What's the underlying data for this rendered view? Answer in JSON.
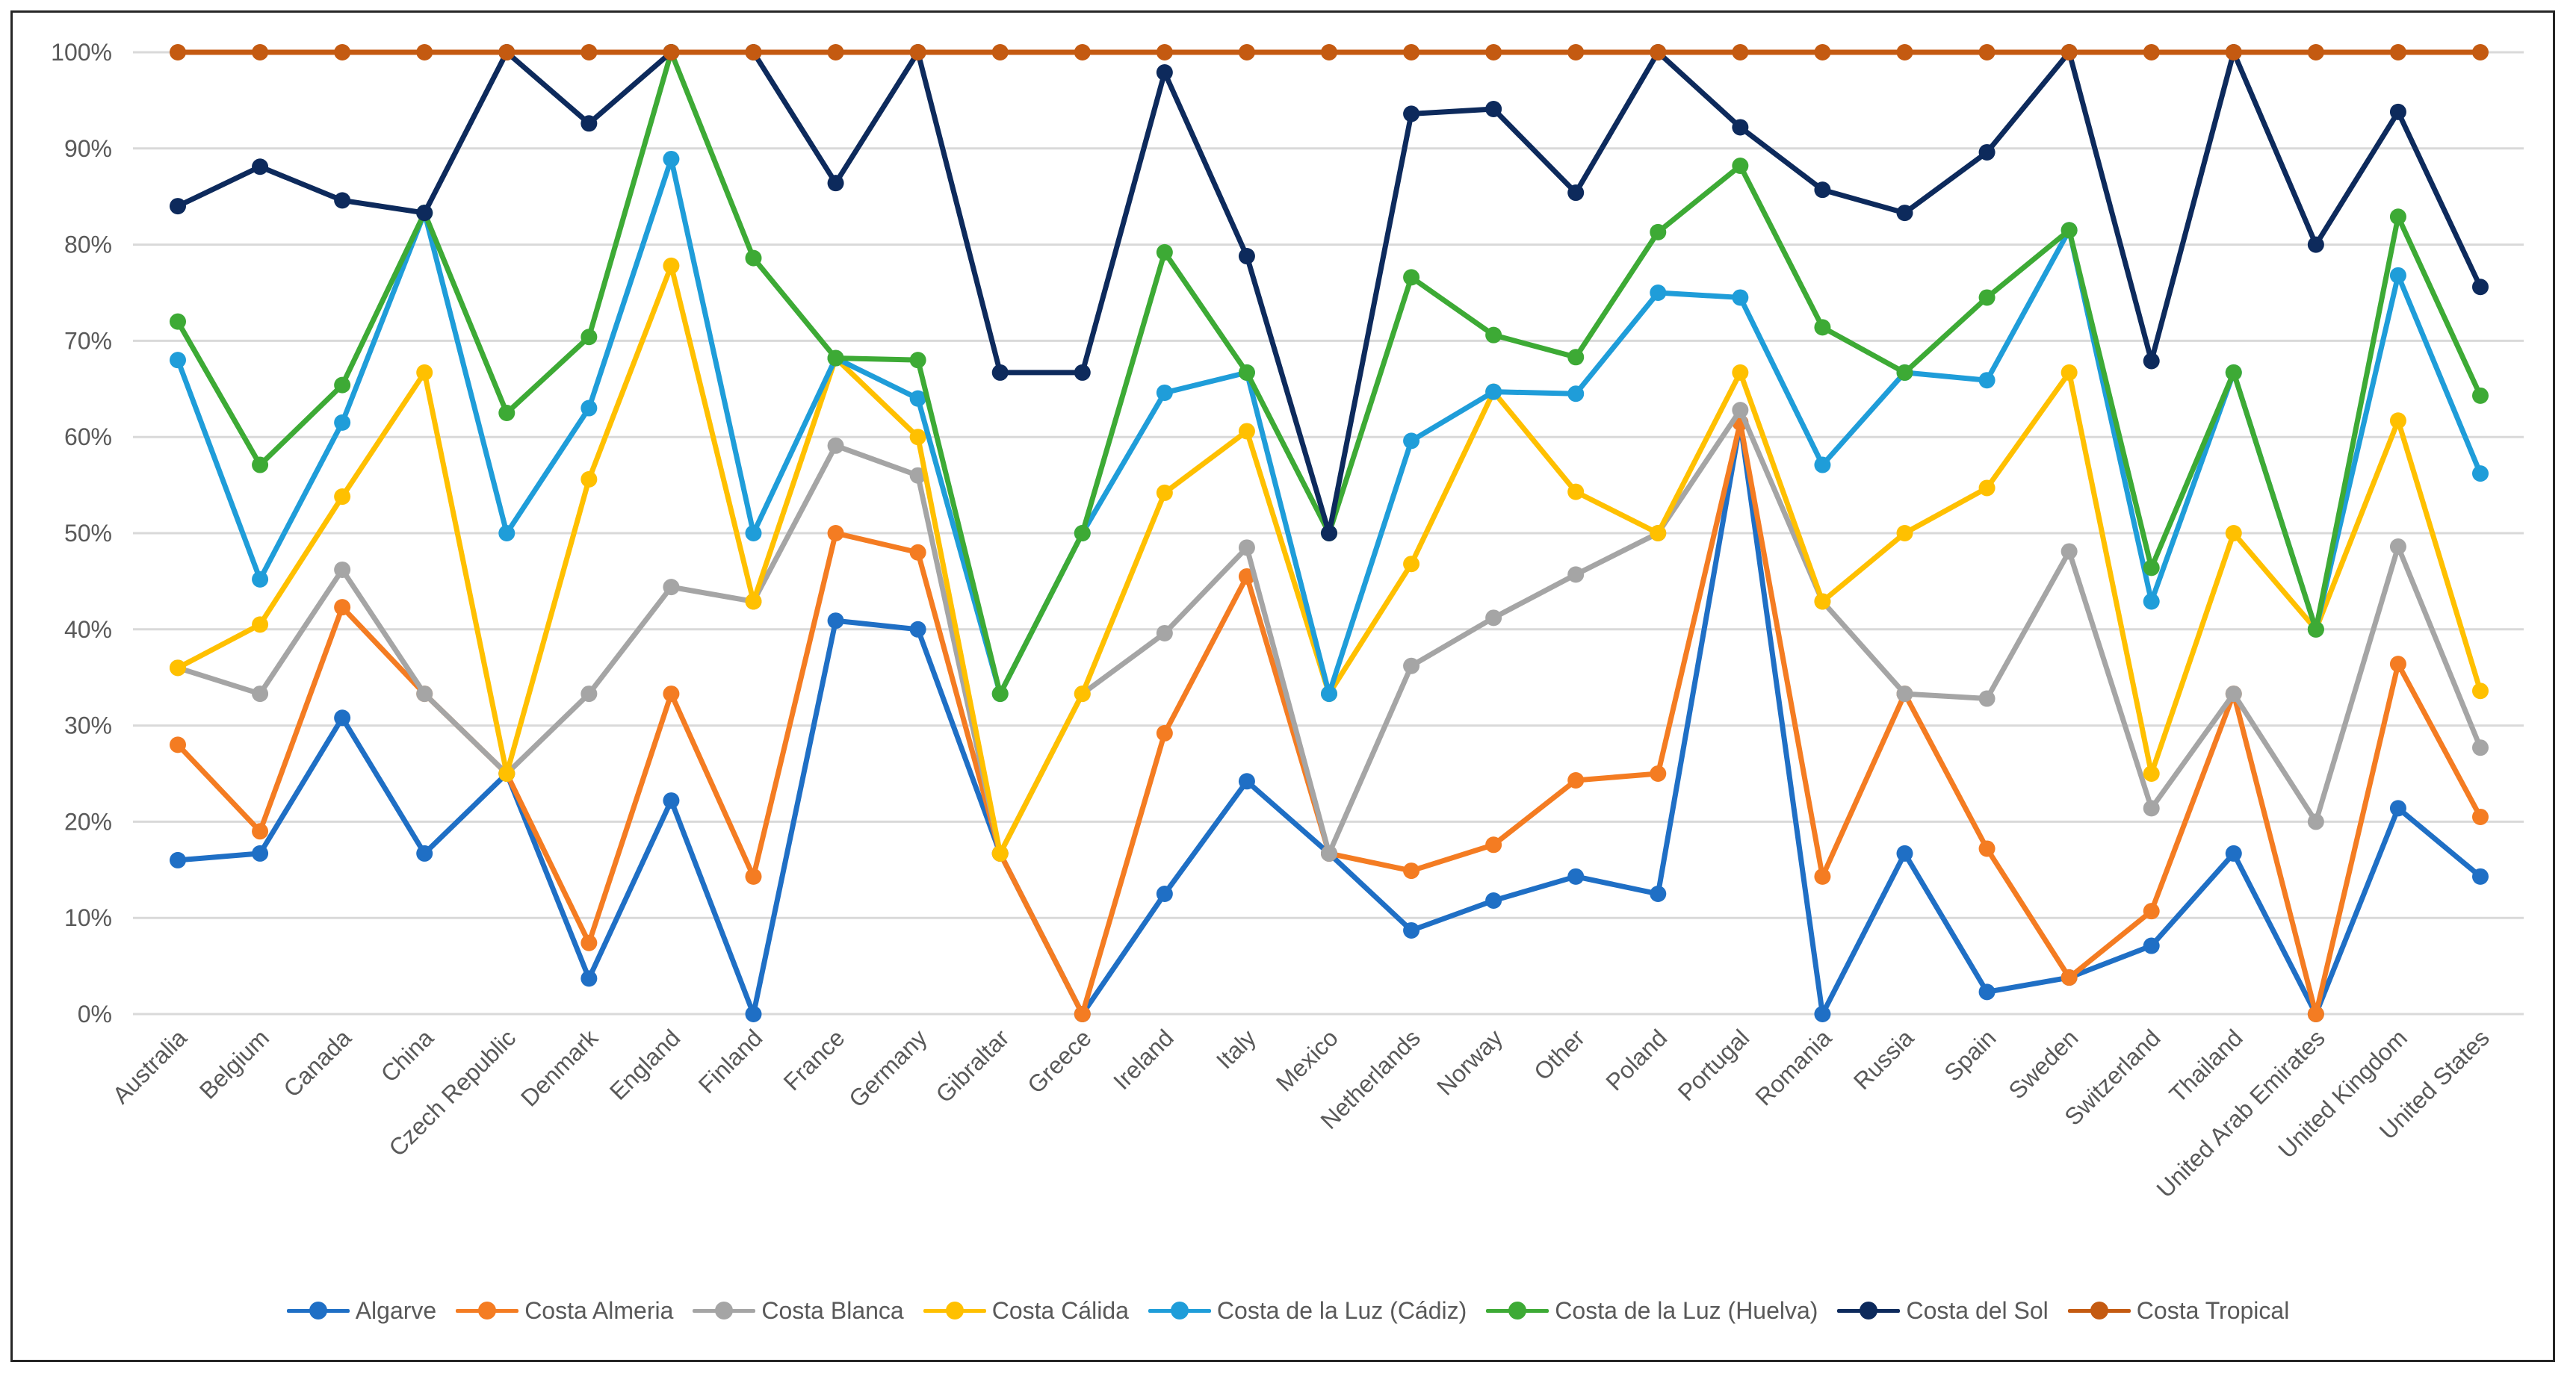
{
  "chart_data": {
    "type": "line",
    "title": "",
    "xlabel": "",
    "ylabel": "",
    "ylim": [
      0,
      100
    ],
    "yticks": [
      "0%",
      "10%",
      "20%",
      "30%",
      "40%",
      "50%",
      "60%",
      "70%",
      "80%",
      "90%",
      "100%"
    ],
    "grid": true,
    "legend_position": "bottom",
    "categories": [
      "Australia",
      "Belgium",
      "Canada",
      "China",
      "Czech Republic",
      "Denmark",
      "England",
      "Finland",
      "France",
      "Germany",
      "Gibraltar",
      "Greece",
      "Ireland",
      "Italy",
      "Mexico",
      "Netherlands",
      "Norway",
      "Other",
      "Poland",
      "Portugal",
      "Romania",
      "Russia",
      "Spain",
      "Sweden",
      "Switzerland",
      "Thailand",
      "United Arab Emirates",
      "United Kingdom",
      "United States"
    ],
    "series": [
      {
        "name": "Algarve",
        "color": "#1F6FC5",
        "values": [
          16,
          16.7,
          30.8,
          16.7,
          25,
          3.7,
          22.2,
          0,
          40.9,
          40,
          16.7,
          0,
          12.5,
          24.2,
          16.7,
          8.7,
          11.8,
          14.3,
          12.5,
          61.5,
          0,
          16.7,
          2.3,
          3.8,
          7.1,
          16.7,
          0,
          21.4,
          14.3
        ]
      },
      {
        "name": "Costa Almeria",
        "color": "#F47C22",
        "values": [
          28,
          19,
          42.3,
          33.3,
          25,
          7.4,
          33.3,
          14.3,
          50,
          48,
          16.7,
          0,
          29.2,
          45.5,
          16.7,
          14.9,
          17.6,
          24.3,
          25,
          61.5,
          14.3,
          33.3,
          17.2,
          3.8,
          10.7,
          33.3,
          0,
          36.4,
          20.5
        ]
      },
      {
        "name": "Costa Blanca",
        "color": "#A5A5A5",
        "values": [
          36,
          33.3,
          46.2,
          33.3,
          25,
          33.3,
          44.4,
          42.9,
          59.1,
          56,
          16.7,
          33.3,
          39.6,
          48.5,
          16.7,
          36.2,
          41.2,
          45.7,
          50,
          62.8,
          42.9,
          33.3,
          32.8,
          48.1,
          21.4,
          33.3,
          20,
          48.6,
          27.7
        ]
      },
      {
        "name": "Costa Cálida",
        "color": "#FFC000",
        "values": [
          36,
          40.5,
          53.8,
          66.7,
          25,
          55.6,
          77.8,
          42.9,
          68.2,
          60,
          16.7,
          33.3,
          54.2,
          60.6,
          33.3,
          46.8,
          64.7,
          54.3,
          50,
          66.7,
          42.9,
          50,
          54.7,
          66.7,
          25,
          50,
          40,
          61.7,
          33.6
        ]
      },
      {
        "name": "Costa de la Luz (Cádiz)",
        "color": "#1F9DD9",
        "values": [
          68,
          45.2,
          61.5,
          83.3,
          50,
          63,
          88.9,
          50,
          68.2,
          64,
          33.3,
          50,
          64.6,
          66.7,
          33.3,
          59.6,
          64.7,
          64.5,
          75,
          74.5,
          57.1,
          66.7,
          65.9,
          81.5,
          42.9,
          66.7,
          40,
          76.8,
          56.2
        ]
      },
      {
        "name": "Costa de la Luz (Huelva)",
        "color": "#3DAA35",
        "values": [
          72,
          57.1,
          65.4,
          83.3,
          62.5,
          70.4,
          100,
          78.6,
          68.2,
          68,
          33.3,
          50,
          79.2,
          66.7,
          50,
          76.6,
          70.6,
          68.3,
          81.3,
          88.2,
          71.4,
          66.7,
          74.5,
          81.5,
          46.4,
          66.7,
          40,
          82.9,
          64.3
        ]
      },
      {
        "name": "Costa del Sol",
        "color": "#0D2A5C",
        "values": [
          84,
          88.1,
          84.6,
          83.3,
          100,
          92.6,
          100,
          100,
          86.4,
          100,
          66.7,
          66.7,
          97.9,
          78.8,
          50,
          93.6,
          94.1,
          85.4,
          100,
          92.2,
          85.7,
          83.3,
          89.6,
          100,
          67.9,
          100,
          80,
          93.8,
          75.6
        ]
      },
      {
        "name": "Costa Tropical",
        "color": "#C45A11",
        "values": [
          100,
          100,
          100,
          100,
          100,
          100,
          100,
          100,
          100,
          100,
          100,
          100,
          100,
          100,
          100,
          100,
          100,
          100,
          100,
          100,
          100,
          100,
          100,
          100,
          100,
          100,
          100,
          100,
          100
        ]
      }
    ]
  }
}
